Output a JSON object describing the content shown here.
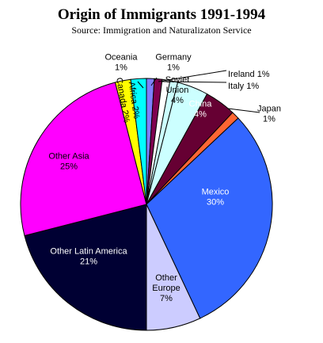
{
  "chart_data": {
    "type": "pie",
    "title": "Origin of Immigrants 1991-1994",
    "subtitle": "Source: Immigration and Naturalizaton Service",
    "slices": [
      {
        "label": "Oceania",
        "label_line2": "1%",
        "value": 1,
        "percent_text": "1%",
        "color": "#7F7FFF",
        "label_color": "#000000"
      },
      {
        "label": "Germany",
        "label_line2": "1%",
        "value": 1,
        "percent_text": "1%",
        "color": "#7F0050",
        "label_color": "#000000"
      },
      {
        "label": "Ireland 1%",
        "value": 1,
        "percent_text": "1%",
        "color": "#FFFFFF",
        "label_color": "#000000"
      },
      {
        "label": "Italy 1%",
        "value": 1,
        "percent_text": "1%",
        "color": "#CCFFFF",
        "label_color": "#000000"
      },
      {
        "label": "Soviet",
        "label_line2": "Union",
        "label_line3": "4%",
        "value": 4,
        "percent_text": "4%",
        "color": "#CCFFFF",
        "label_color": "#000000"
      },
      {
        "label": "China",
        "label_line2": "4%",
        "value": 4,
        "percent_text": "4%",
        "color": "#660033",
        "label_color": "#FFFFFF"
      },
      {
        "label": "Japan",
        "label_line2": "1%",
        "value": 1,
        "percent_text": "1%",
        "color": "#FF6633",
        "label_color": "#000000"
      },
      {
        "label": "Mexico",
        "label_line2": "30%",
        "value": 30,
        "percent_text": "30%",
        "color": "#3366FF",
        "label_color": "#FFFFFF"
      },
      {
        "label": "Other",
        "label_line2": "Europe",
        "label_line3": "7%",
        "value": 7,
        "percent_text": "7%",
        "color": "#CCCCFF",
        "label_color": "#000000"
      },
      {
        "label": "Other Latin America",
        "label_line2": "21%",
        "value": 21,
        "percent_text": "21%",
        "color": "#000033",
        "label_color": "#FFFFFF"
      },
      {
        "label": "Other Asia",
        "label_line2": "25%",
        "value": 25,
        "percent_text": "25%",
        "color": "#FF00FF",
        "label_color": "#000000"
      },
      {
        "label": "Canada 2%",
        "value": 2,
        "percent_text": "2%",
        "color": "#FFFF00",
        "label_color": "#000000"
      },
      {
        "label": "Africa 2%",
        "value": 2,
        "percent_text": "2%",
        "color": "#00FFFF",
        "label_color": "#000000"
      }
    ],
    "legend": "none",
    "grid": false
  }
}
